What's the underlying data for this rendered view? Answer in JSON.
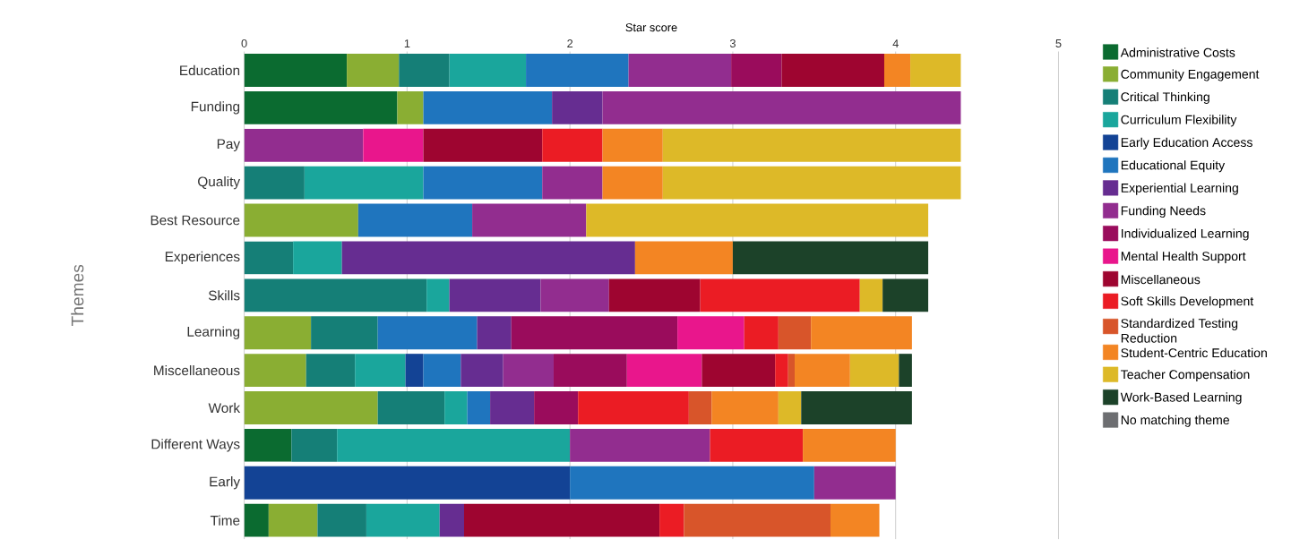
{
  "chart_data": {
    "type": "bar",
    "orientation": "horizontal",
    "stacked": true,
    "xlabel": "Star score",
    "ylabel": "Themes",
    "categories": [
      "Education",
      "Funding",
      "Pay",
      "Quality",
      "Best Resource",
      "Experiences",
      "Skills",
      "Learning",
      "Miscellaneous",
      "Work",
      "Different Ways",
      "Early",
      "Time"
    ],
    "series": [
      {
        "name": "Administrative Costs",
        "color": "#0b6b30",
        "values": [
          0.63,
          0.94,
          null,
          null,
          null,
          null,
          null,
          null,
          null,
          null,
          0.29,
          null,
          0.15
        ]
      },
      {
        "name": "Community Engagement",
        "color": "#8aae33",
        "values": [
          0.32,
          0.16,
          null,
          null,
          0.7,
          null,
          null,
          0.41,
          0.38,
          0.82,
          null,
          null,
          0.3
        ]
      },
      {
        "name": "Critical Thinking",
        "color": "#157f77",
        "values": [
          0.31,
          null,
          null,
          0.37,
          null,
          0.3,
          1.12,
          0.41,
          0.3,
          0.41,
          0.28,
          null,
          0.3
        ]
      },
      {
        "name": "Curriculum Flexibility",
        "color": "#1aa69c",
        "values": [
          0.47,
          null,
          null,
          0.73,
          null,
          0.3,
          0.14,
          null,
          0.31,
          0.14,
          1.43,
          null,
          0.45
        ]
      },
      {
        "name": "Early Education Access",
        "color": "#134395",
        "values": [
          null,
          null,
          null,
          null,
          null,
          null,
          null,
          null,
          0.11,
          null,
          null,
          2.0,
          null
        ]
      },
      {
        "name": "Educational Equity",
        "color": "#1f75be",
        "values": [
          0.63,
          0.79,
          null,
          0.73,
          0.7,
          null,
          null,
          0.61,
          0.23,
          0.14,
          null,
          1.5,
          null
        ]
      },
      {
        "name": "Experiential Learning",
        "color": "#662d91",
        "values": [
          null,
          0.31,
          null,
          null,
          null,
          1.8,
          0.56,
          0.21,
          0.26,
          0.27,
          null,
          null,
          0.15
        ]
      },
      {
        "name": "Funding Needs",
        "color": "#922d8f",
        "values": [
          0.63,
          2.2,
          0.73,
          0.37,
          0.7,
          null,
          0.42,
          null,
          0.31,
          null,
          0.86,
          0.5,
          null
        ]
      },
      {
        "name": "Individualized Learning",
        "color": "#9a0c5c",
        "values": [
          0.31,
          null,
          null,
          null,
          null,
          null,
          null,
          1.02,
          0.45,
          0.27,
          null,
          null,
          null
        ]
      },
      {
        "name": "Mental Health Support",
        "color": "#e9168c",
        "values": [
          null,
          null,
          0.37,
          null,
          null,
          null,
          null,
          0.41,
          0.46,
          null,
          null,
          null,
          null
        ]
      },
      {
        "name": "Miscellaneous",
        "color": "#9e0530",
        "values": [
          0.63,
          null,
          0.73,
          null,
          null,
          null,
          0.56,
          null,
          0.45,
          null,
          null,
          null,
          1.2
        ]
      },
      {
        "name": "Soft Skills Development",
        "color": "#eb1c24",
        "values": [
          null,
          null,
          0.37,
          null,
          null,
          null,
          0.98,
          0.21,
          0.08,
          0.68,
          0.57,
          null,
          0.15
        ]
      },
      {
        "name": "Standardized Testing Reduction",
        "color": "#d8552a",
        "values": [
          null,
          null,
          null,
          null,
          null,
          null,
          null,
          0.2,
          0.04,
          0.14,
          null,
          null,
          0.9
        ]
      },
      {
        "name": "Student-Centric Education",
        "color": "#f38523",
        "values": [
          0.16,
          null,
          0.37,
          0.37,
          null,
          0.6,
          null,
          0.62,
          0.34,
          0.41,
          0.57,
          null,
          0.3
        ]
      },
      {
        "name": "Teacher Compensation",
        "color": "#ddb928",
        "values": [
          0.31,
          null,
          1.83,
          1.83,
          2.1,
          null,
          0.14,
          null,
          0.3,
          0.14,
          null,
          null,
          null
        ]
      },
      {
        "name": "Work-Based Learning",
        "color": "#1c4229",
        "values": [
          null,
          null,
          null,
          null,
          null,
          1.2,
          0.28,
          null,
          0.08,
          0.68,
          null,
          null,
          null
        ]
      },
      {
        "name": "No matching theme",
        "color": "#6d6e71",
        "values": [
          null,
          null,
          null,
          null,
          null,
          null,
          null,
          null,
          null,
          null,
          null,
          null,
          null
        ]
      }
    ],
    "xlim": [
      0,
      5
    ],
    "xticks": [
      0,
      1,
      2,
      3,
      4,
      5
    ],
    "grid": "x",
    "legend": "right"
  }
}
